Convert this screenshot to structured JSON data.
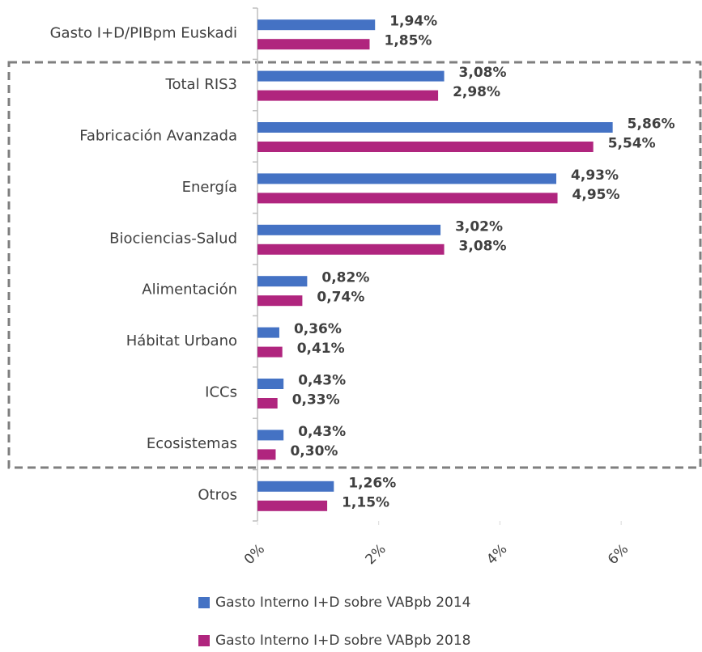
{
  "chart_data": {
    "type": "barh",
    "categories": [
      "Gasto I+D/PIBpm Euskadi",
      "Total RIS3",
      "Fabricación Avanzada",
      "Energía",
      "Biociencias-Salud",
      "Alimentación",
      "Hábitat Urbano",
      "ICCs",
      "Ecosistemas",
      "Otros"
    ],
    "series": [
      {
        "name": "Gasto Interno I+D sobre VABpb 2014",
        "color": "#4472c4",
        "values": [
          1.94,
          3.08,
          5.86,
          4.93,
          3.02,
          0.82,
          0.36,
          0.43,
          0.43,
          1.26
        ],
        "value_labels": [
          "1,94%",
          "3,08%",
          "5,86%",
          "4,93%",
          "3,02%",
          "0,82%",
          "0,36%",
          "0,43%",
          "0,43%",
          "1,26%"
        ]
      },
      {
        "name": "Gasto Interno I+D sobre VABpb 2018",
        "color": "#b0257e",
        "values": [
          1.85,
          2.98,
          5.54,
          4.95,
          3.08,
          0.74,
          0.41,
          0.33,
          0.3,
          1.15
        ],
        "value_labels": [
          "1,85%",
          "2,98%",
          "5,54%",
          "4,95%",
          "3,08%",
          "0,74%",
          "0,41%",
          "0,33%",
          "0,30%",
          "1,15%"
        ]
      }
    ],
    "xlim": [
      0,
      7
    ],
    "xticks": [
      {
        "value": 0,
        "label": "0%"
      },
      {
        "value": 2,
        "label": "2%"
      },
      {
        "value": 4,
        "label": "4%"
      },
      {
        "value": 6,
        "label": "6%"
      }
    ],
    "legend": "bottom"
  }
}
